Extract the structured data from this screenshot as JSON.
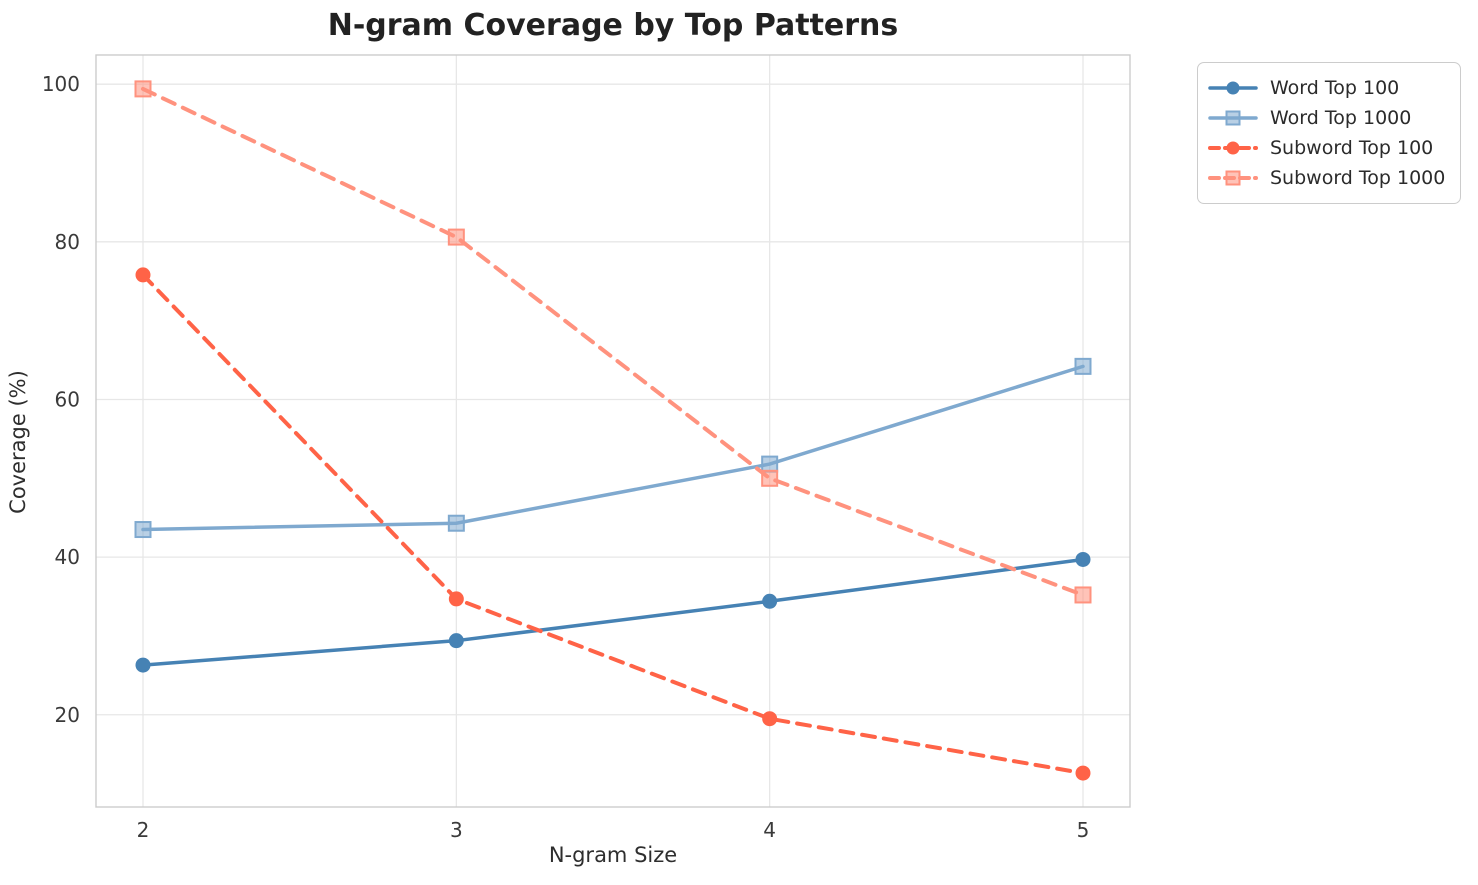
{
  "chart_data": {
    "type": "line",
    "title": "N-gram Coverage by Top Patterns",
    "xlabel": "N-gram Size",
    "ylabel": "Coverage (%)",
    "x": [
      2,
      3,
      4,
      5
    ],
    "x_tick_labels": [
      "2",
      "3",
      "4",
      "5"
    ],
    "y_ticks": [
      20,
      40,
      60,
      80,
      100
    ],
    "y_tick_labels": [
      "20",
      "40",
      "60",
      "80",
      "100"
    ],
    "xlim": [
      1.85,
      5.15
    ],
    "ylim": [
      8.3,
      103.7
    ],
    "grid": true,
    "legend_position": "outside-upper-right",
    "grid_color": "#e7e7e7",
    "spine_color": "#cccccc",
    "series": [
      {
        "name": "Word Top 100",
        "values": [
          26.3,
          29.4,
          34.4,
          39.7
        ],
        "color": "#4682B4",
        "line_style": "solid",
        "marker": "circle"
      },
      {
        "name": "Word Top 1000",
        "values": [
          43.5,
          44.3,
          51.8,
          64.2
        ],
        "color": "#7FA9CF",
        "line_style": "solid",
        "marker": "square"
      },
      {
        "name": "Subword Top 100",
        "values": [
          75.8,
          34.7,
          19.5,
          12.6
        ],
        "color": "#FF6347",
        "line_style": "dashed",
        "marker": "circle"
      },
      {
        "name": "Subword Top 1000",
        "values": [
          99.4,
          80.6,
          50.0,
          35.2
        ],
        "color": "#FF927E",
        "line_style": "dashed",
        "marker": "square"
      }
    ]
  }
}
